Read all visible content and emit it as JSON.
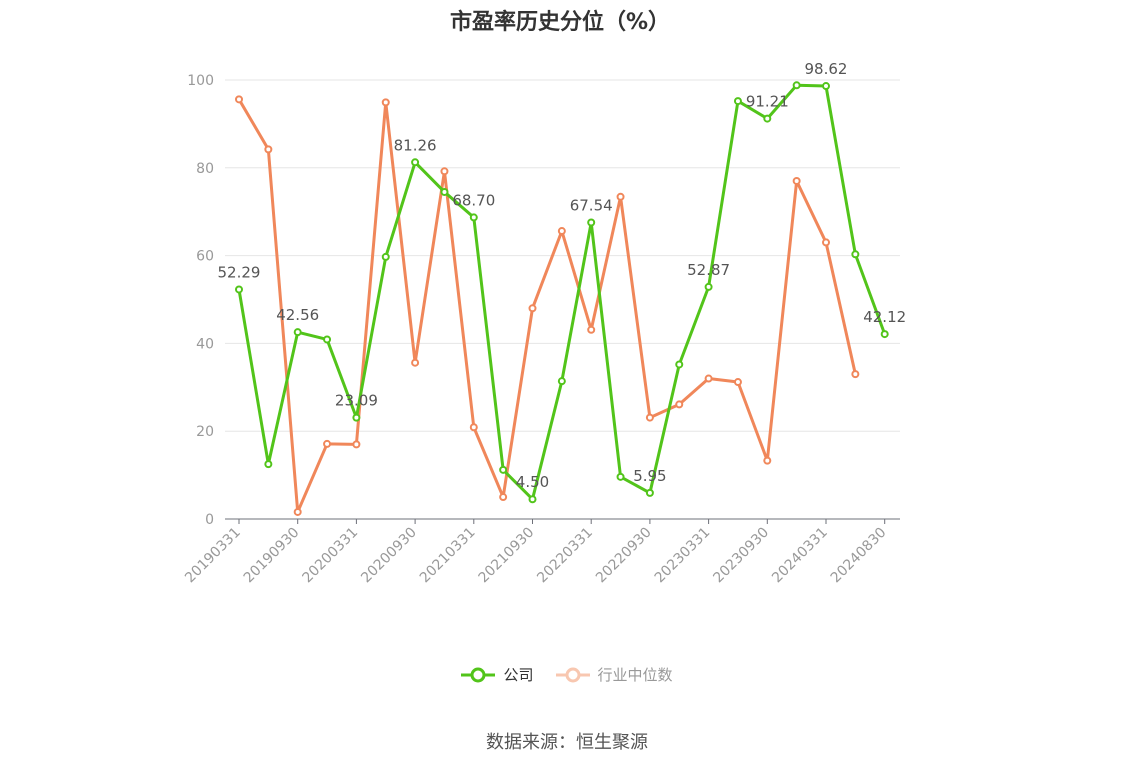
{
  "chart_data": {
    "type": "line",
    "title": "市盈率历史分位（%）",
    "x": [
      "20190331",
      "20190630",
      "20190930",
      "20191231",
      "20200331",
      "20200630",
      "20200930",
      "20201231",
      "20210331",
      "20210630",
      "20210930",
      "20211231",
      "20220331",
      "20220630",
      "20220930",
      "20221231",
      "20230331",
      "20230630",
      "20230930",
      "20231231",
      "20240331",
      "20240630",
      "20240830"
    ],
    "tick_labels": [
      "20190331",
      "20190930",
      "20200331",
      "20200930",
      "20210331",
      "20210930",
      "20220331",
      "20220930",
      "20230331",
      "20230930",
      "20240331",
      "20240830"
    ],
    "y_ticks": [
      0,
      20,
      40,
      60,
      80,
      100
    ],
    "ylim": [
      0,
      100
    ],
    "grid": true,
    "legend_position": "bottom",
    "series": [
      {
        "name": "公司",
        "color": "#52c41a",
        "values": [
          52.29,
          12.5,
          42.56,
          40.9,
          23.09,
          59.7,
          81.26,
          74.5,
          68.7,
          11.2,
          4.5,
          31.4,
          67.54,
          9.6,
          5.95,
          35.2,
          52.87,
          95.2,
          91.21,
          98.8,
          98.62,
          60.3,
          42.12
        ],
        "labeled_points": [
          {
            "index": 0,
            "text": "52.29"
          },
          {
            "index": 2,
            "text": "42.56"
          },
          {
            "index": 4,
            "text": "23.09"
          },
          {
            "index": 6,
            "text": "81.26"
          },
          {
            "index": 8,
            "text": "68.70"
          },
          {
            "index": 10,
            "text": "4.50"
          },
          {
            "index": 12,
            "text": "67.54"
          },
          {
            "index": 14,
            "text": "5.95"
          },
          {
            "index": 16,
            "text": "52.87"
          },
          {
            "index": 18,
            "text": "91.21"
          },
          {
            "index": 20,
            "text": "98.62"
          },
          {
            "index": 22,
            "text": "42.12"
          }
        ]
      },
      {
        "name": "行业中位数",
        "color": "#f0875a",
        "values": [
          95.6,
          84.2,
          1.6,
          17.1,
          17.0,
          94.9,
          35.6,
          79.2,
          20.9,
          5.0,
          48.0,
          65.6,
          43.1,
          73.4,
          23.1,
          26.1,
          32.0,
          31.2,
          13.3,
          77.0,
          63.0,
          33.0,
          null
        ]
      }
    ]
  },
  "legend": {
    "company_label": "公司",
    "industry_label": "行业中位数"
  },
  "source_text": "数据来源：恒生聚源"
}
